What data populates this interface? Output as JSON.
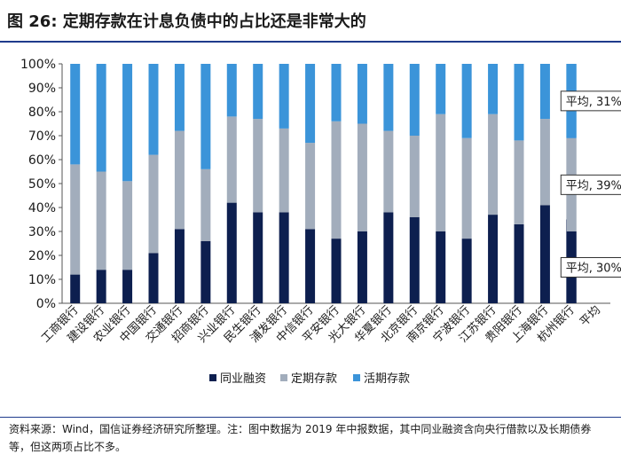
{
  "title": "图 26: 定期存款在计息负债中的占比还是非常大的",
  "chart_data": {
    "type": "bar",
    "stacked": true,
    "categories": [
      "工商银行",
      "建设银行",
      "农业银行",
      "中国银行",
      "交通银行",
      "招商银行",
      "兴业银行",
      "民生银行",
      "浦发银行",
      "中信银行",
      "平安银行",
      "光大银行",
      "华夏银行",
      "北京银行",
      "南京银行",
      "宁波银行",
      "江苏银行",
      "贵阳银行",
      "上海银行",
      "杭州银行",
      "平均"
    ],
    "series": [
      {
        "name": "同业融资",
        "color": "#0d1f4f",
        "values": [
          12,
          14,
          14,
          21,
          31,
          26,
          42,
          38,
          38,
          31,
          27,
          30,
          38,
          36,
          30,
          27,
          37,
          33,
          41,
          35,
          30
        ]
      },
      {
        "name": "定期存款",
        "color": "#a2adbc",
        "values": [
          46,
          41,
          37,
          41,
          41,
          30,
          36,
          39,
          35,
          36,
          49,
          45,
          34,
          34,
          49,
          42,
          42,
          35,
          36,
          34,
          39
        ]
      },
      {
        "name": "活期存款",
        "color": "#3b94d9",
        "values": [
          42,
          45,
          49,
          38,
          28,
          44,
          22,
          23,
          27,
          33,
          24,
          25,
          28,
          30,
          21,
          31,
          21,
          32,
          23,
          31,
          31
        ]
      }
    ],
    "ylim": [
      0,
      100
    ],
    "yticks": [
      "0%",
      "10%",
      "20%",
      "30%",
      "40%",
      "50%",
      "60%",
      "70%",
      "80%",
      "90%",
      "100%"
    ],
    "annotations": [
      "平均, 31%",
      "平均, 39%",
      "平均, 30%"
    ],
    "legend": [
      "同业融资",
      "定期存款",
      "活期存款"
    ],
    "legend_position": "bottom"
  },
  "source": "资料来源：Wind，国信证券经济研究所整理。注：图中数据为 2019 年中报数据，其中同业融资含向央行借款以及长期债券等，但这两项占比不多。"
}
